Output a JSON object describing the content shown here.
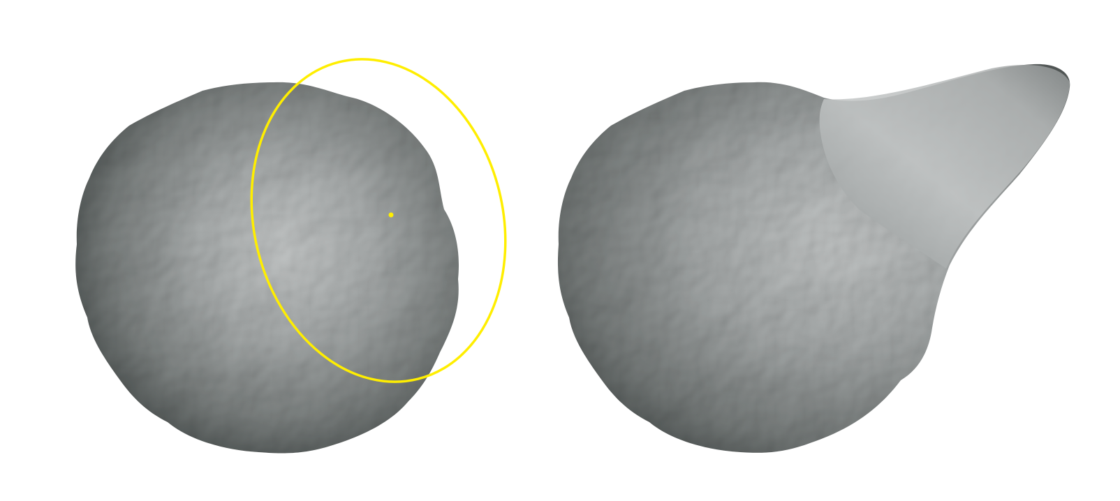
{
  "viewport": {
    "background_color": "#ffffff"
  },
  "panels": [
    {
      "id": "before",
      "object": "lumpy-sphere-mesh",
      "tool_overlay": "brush-cursor"
    },
    {
      "id": "after",
      "object": "deformed-mesh-with-protrusion"
    }
  ],
  "brush_cursor": {
    "ring_color": "#ffee00",
    "center_dot_color": "#ffee00",
    "icon": "brush-ring-icon"
  },
  "mesh_colors": {
    "highlight": "#c8cbcb",
    "mid": "#8f9393",
    "shadow": "#3d4241"
  }
}
